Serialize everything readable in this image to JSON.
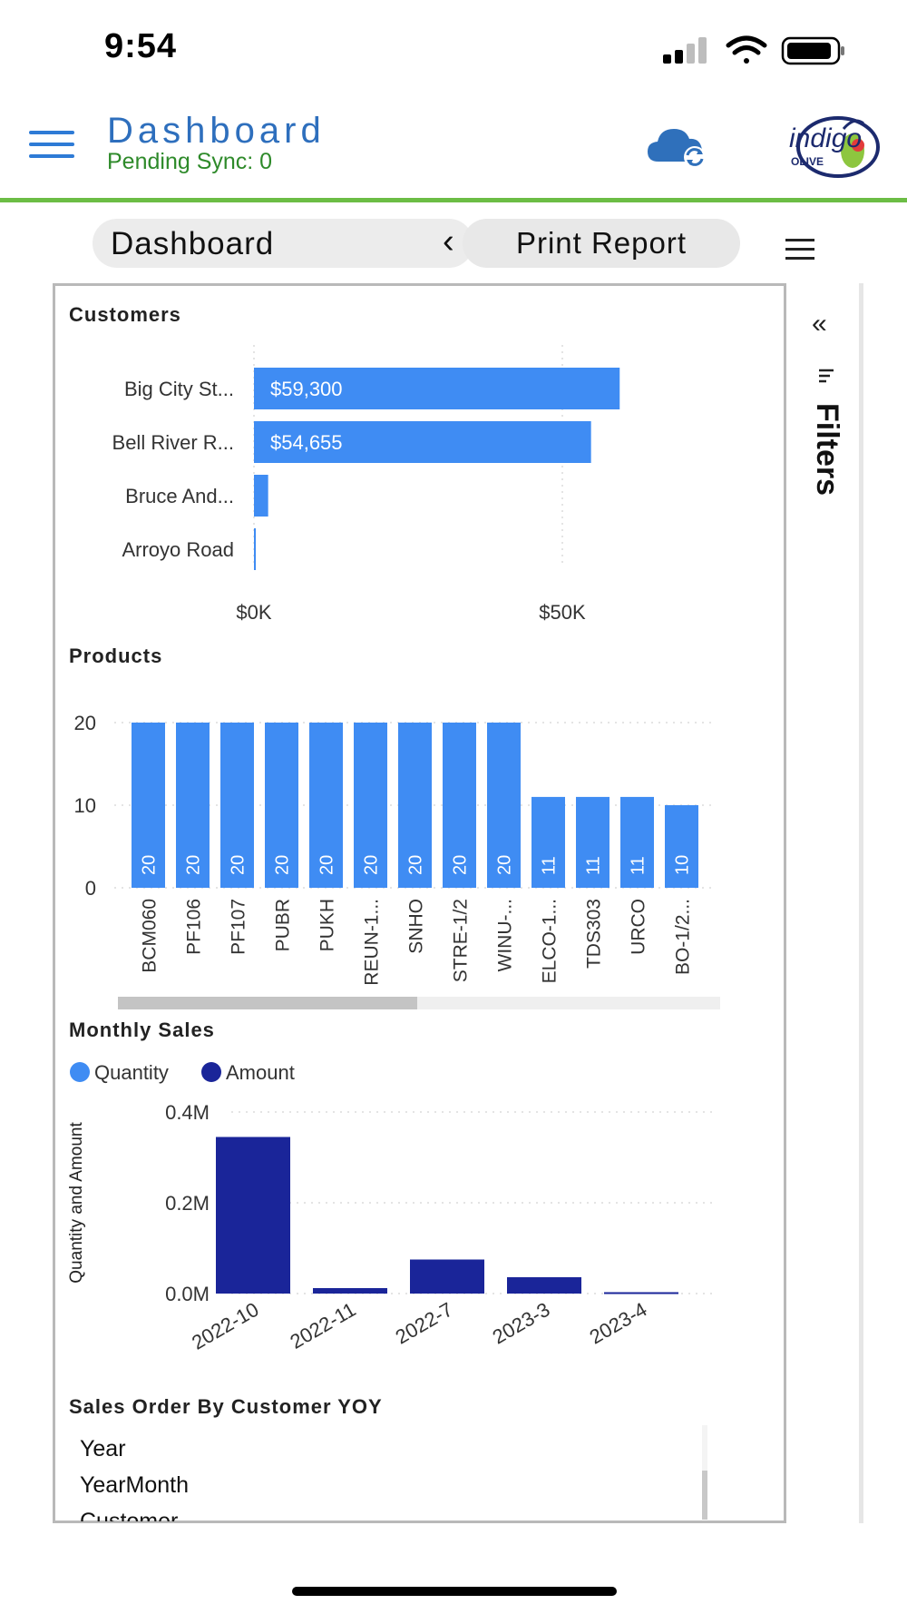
{
  "status_bar": {
    "time": "9:54"
  },
  "header": {
    "title": "Dashboard",
    "sync_status": "Pending Sync: 0",
    "logo_text": "indigo OLIVE"
  },
  "toolbar": {
    "page_select": "Dashboard",
    "print_label": "Print Report"
  },
  "filters": {
    "label": "Filters",
    "collapse_glyph": "«"
  },
  "colors": {
    "light_blue": "#3f8cf3",
    "dark_blue": "#1a2599",
    "accent_green": "#6cbd45",
    "title_blue": "#2e6fbd"
  },
  "chart_data": [
    {
      "type": "bar",
      "orientation": "horizontal",
      "title": "Customers",
      "categories": [
        "Big City St...",
        "Bell River R...",
        "Bruce And...",
        "Arroyo Road"
      ],
      "values": [
        59300,
        54655,
        2300,
        300
      ],
      "data_labels": [
        "$59,300",
        "$54,655",
        "",
        ""
      ],
      "x_ticks": [
        "$0K",
        "$50K"
      ],
      "x_tick_values": [
        0,
        50000
      ],
      "xlim": [
        0,
        65000
      ]
    },
    {
      "type": "bar",
      "title": "Products",
      "categories": [
        "BCM060",
        "PF106",
        "PF107",
        "PUBR",
        "PUKH",
        "REUN-1...",
        "SNHO",
        "STRE-1/2",
        "WINU-...",
        "ELCO-1...",
        "TDS303",
        "URCO",
        "BO-1/2..."
      ],
      "values": [
        20,
        20,
        20,
        20,
        20,
        20,
        20,
        20,
        20,
        11,
        11,
        11,
        10
      ],
      "y_ticks": [
        0,
        10,
        20
      ],
      "ylim": [
        0,
        20
      ]
    },
    {
      "type": "bar",
      "title": "Monthly Sales",
      "legend": [
        "Quantity",
        "Amount"
      ],
      "categories": [
        "2022-10",
        "2022-11",
        "2022-7",
        "2023-3",
        "2023-4"
      ],
      "series": [
        {
          "name": "Quantity",
          "values": [
            0,
            0,
            0,
            0,
            0
          ]
        },
        {
          "name": "Amount",
          "values": [
            345000,
            12000,
            75000,
            36000,
            3000
          ]
        }
      ],
      "ylabel": "Quantity and Amount",
      "y_ticks": [
        "0.0M",
        "0.2M",
        "0.4M"
      ],
      "y_tick_values": [
        0,
        200000,
        400000
      ],
      "ylim": [
        0,
        400000
      ]
    }
  ],
  "table": {
    "title": "Sales Order By Customer YOY",
    "rows": [
      "Year",
      "YearMonth",
      "Customer"
    ]
  }
}
